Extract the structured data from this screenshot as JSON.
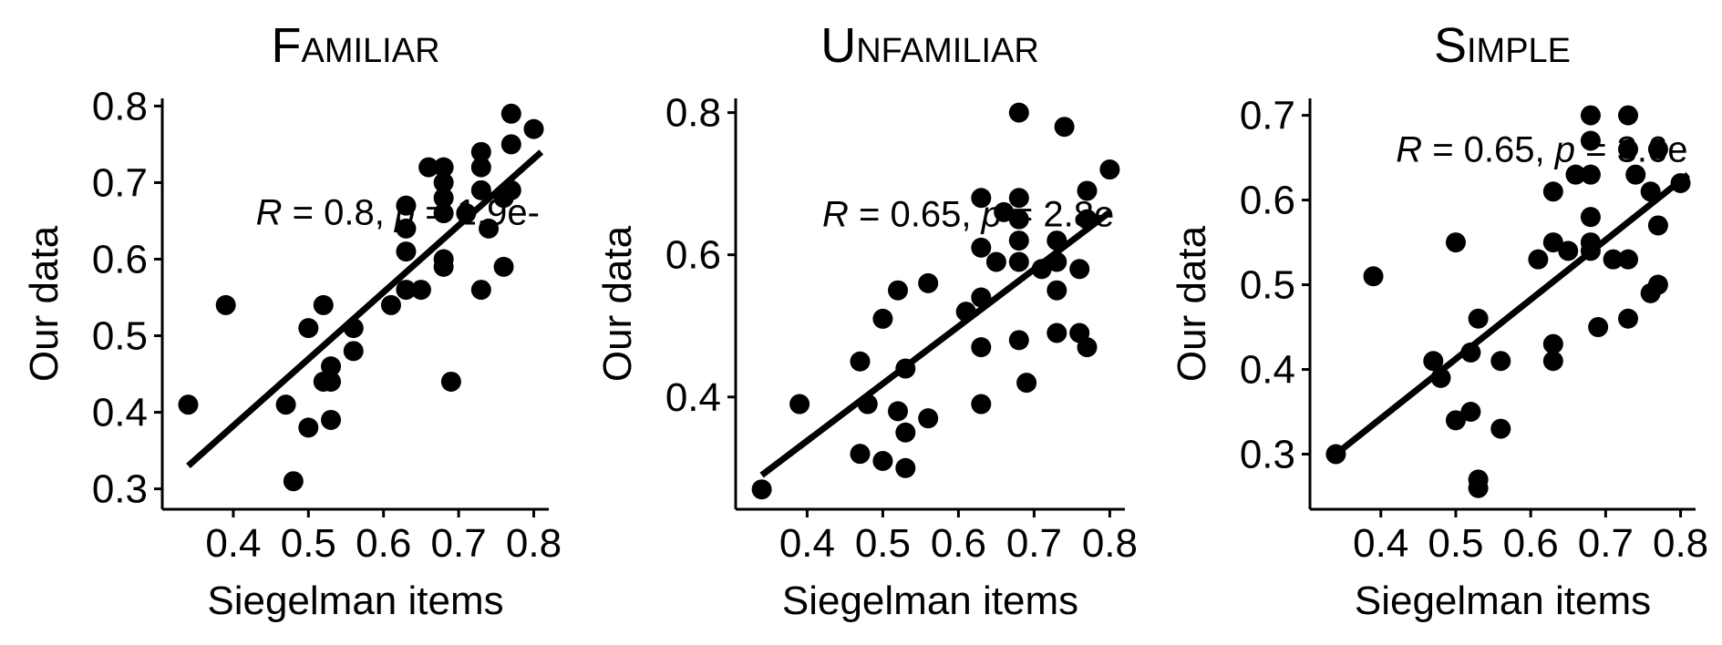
{
  "chart_data": [
    {
      "type": "scatter",
      "title": "Familiar",
      "xlabel": "Siegelman items",
      "ylabel": "Our data",
      "xlim": [
        0.32,
        0.82
      ],
      "ylim": [
        0.29,
        0.81
      ],
      "xticks": [
        "0.4",
        "0.5",
        "0.6",
        "0.7",
        "0.8"
      ],
      "yticks": [
        "0.3",
        "0.4",
        "0.5",
        "0.6",
        "0.7",
        "0.8"
      ],
      "annotation": {
        "r_symbol": "R",
        "r_text": " = 0.8, ",
        "p_symbol": "p",
        "p_text": " = 1.9e-",
        "x": 0.43,
        "y": 0.645
      },
      "fit_line": [
        [
          0.34,
          0.33
        ],
        [
          0.81,
          0.74
        ]
      ],
      "points": [
        [
          0.34,
          0.41
        ],
        [
          0.39,
          0.54
        ],
        [
          0.47,
          0.41
        ],
        [
          0.48,
          0.31
        ],
        [
          0.5,
          0.38
        ],
        [
          0.5,
          0.51
        ],
        [
          0.52,
          0.44
        ],
        [
          0.52,
          0.54
        ],
        [
          0.53,
          0.46
        ],
        [
          0.53,
          0.44
        ],
        [
          0.53,
          0.39
        ],
        [
          0.56,
          0.51
        ],
        [
          0.56,
          0.48
        ],
        [
          0.61,
          0.54
        ],
        [
          0.63,
          0.56
        ],
        [
          0.63,
          0.61
        ],
        [
          0.63,
          0.64
        ],
        [
          0.63,
          0.67
        ],
        [
          0.65,
          0.56
        ],
        [
          0.66,
          0.72
        ],
        [
          0.68,
          0.72
        ],
        [
          0.68,
          0.7
        ],
        [
          0.68,
          0.68
        ],
        [
          0.68,
          0.66
        ],
        [
          0.68,
          0.6
        ],
        [
          0.68,
          0.59
        ],
        [
          0.69,
          0.44
        ],
        [
          0.71,
          0.66
        ],
        [
          0.73,
          0.74
        ],
        [
          0.73,
          0.72
        ],
        [
          0.73,
          0.69
        ],
        [
          0.73,
          0.56
        ],
        [
          0.74,
          0.64
        ],
        [
          0.76,
          0.59
        ],
        [
          0.76,
          0.68
        ],
        [
          0.77,
          0.79
        ],
        [
          0.77,
          0.75
        ],
        [
          0.77,
          0.69
        ],
        [
          0.8,
          0.77
        ]
      ]
    },
    {
      "type": "scatter",
      "title": "Unfamiliar",
      "xlabel": "Siegelman items",
      "ylabel": "Our data",
      "xlim": [
        0.32,
        0.82
      ],
      "ylim": [
        0.26,
        0.82
      ],
      "xticks": [
        "0.4",
        "0.5",
        "0.6",
        "0.7",
        "0.8"
      ],
      "yticks": [
        "0.4",
        "0.6",
        "0.8"
      ],
      "annotation": {
        "r_symbol": "R",
        "r_text": " = 0.65, ",
        "p_symbol": "p",
        "p_text": " = 2.8e",
        "x": 0.42,
        "y": 0.64
      },
      "fit_line": [
        [
          0.34,
          0.29
        ],
        [
          0.8,
          0.66
        ]
      ],
      "points": [
        [
          0.34,
          0.27
        ],
        [
          0.39,
          0.39
        ],
        [
          0.47,
          0.45
        ],
        [
          0.47,
          0.32
        ],
        [
          0.48,
          0.39
        ],
        [
          0.5,
          0.51
        ],
        [
          0.5,
          0.31
        ],
        [
          0.52,
          0.55
        ],
        [
          0.52,
          0.38
        ],
        [
          0.53,
          0.44
        ],
        [
          0.53,
          0.35
        ],
        [
          0.53,
          0.3
        ],
        [
          0.56,
          0.56
        ],
        [
          0.56,
          0.37
        ],
        [
          0.61,
          0.52
        ],
        [
          0.63,
          0.68
        ],
        [
          0.63,
          0.61
        ],
        [
          0.63,
          0.54
        ],
        [
          0.63,
          0.47
        ],
        [
          0.63,
          0.39
        ],
        [
          0.65,
          0.59
        ],
        [
          0.66,
          0.66
        ],
        [
          0.68,
          0.8
        ],
        [
          0.68,
          0.68
        ],
        [
          0.68,
          0.65
        ],
        [
          0.68,
          0.62
        ],
        [
          0.68,
          0.59
        ],
        [
          0.68,
          0.48
        ],
        [
          0.69,
          0.42
        ],
        [
          0.71,
          0.58
        ],
        [
          0.73,
          0.62
        ],
        [
          0.73,
          0.59
        ],
        [
          0.73,
          0.55
        ],
        [
          0.73,
          0.49
        ],
        [
          0.74,
          0.78
        ],
        [
          0.76,
          0.58
        ],
        [
          0.76,
          0.49
        ],
        [
          0.77,
          0.69
        ],
        [
          0.77,
          0.47
        ],
        [
          0.77,
          0.65
        ],
        [
          0.8,
          0.72
        ]
      ]
    },
    {
      "type": "scatter",
      "title": "Simple",
      "xlabel": "Siegelman items",
      "ylabel": "Our data",
      "xlim": [
        0.32,
        0.82
      ],
      "ylim": [
        0.25,
        0.72
      ],
      "xticks": [
        "0.4",
        "0.5",
        "0.6",
        "0.7",
        "0.8"
      ],
      "yticks": [
        "0.3",
        "0.4",
        "0.5",
        "0.6",
        "0.7"
      ],
      "annotation": {
        "r_symbol": "R",
        "r_text": " = 0.65, ",
        "p_symbol": "p",
        "p_text": " = 3.6e",
        "x": 0.42,
        "y": 0.645
      },
      "fit_line": [
        [
          0.34,
          0.3
        ],
        [
          0.81,
          0.63
        ]
      ],
      "points": [
        [
          0.34,
          0.3
        ],
        [
          0.39,
          0.51
        ],
        [
          0.47,
          0.41
        ],
        [
          0.48,
          0.39
        ],
        [
          0.5,
          0.55
        ],
        [
          0.5,
          0.34
        ],
        [
          0.52,
          0.42
        ],
        [
          0.52,
          0.35
        ],
        [
          0.53,
          0.46
        ],
        [
          0.53,
          0.27
        ],
        [
          0.53,
          0.26
        ],
        [
          0.56,
          0.41
        ],
        [
          0.56,
          0.33
        ],
        [
          0.61,
          0.53
        ],
        [
          0.63,
          0.61
        ],
        [
          0.63,
          0.55
        ],
        [
          0.63,
          0.43
        ],
        [
          0.63,
          0.41
        ],
        [
          0.65,
          0.54
        ],
        [
          0.66,
          0.63
        ],
        [
          0.68,
          0.7
        ],
        [
          0.68,
          0.67
        ],
        [
          0.68,
          0.63
        ],
        [
          0.68,
          0.58
        ],
        [
          0.68,
          0.55
        ],
        [
          0.68,
          0.54
        ],
        [
          0.69,
          0.45
        ],
        [
          0.71,
          0.53
        ],
        [
          0.73,
          0.7
        ],
        [
          0.73,
          0.66
        ],
        [
          0.73,
          0.53
        ],
        [
          0.73,
          0.46
        ],
        [
          0.74,
          0.63
        ],
        [
          0.76,
          0.61
        ],
        [
          0.76,
          0.49
        ],
        [
          0.77,
          0.66
        ],
        [
          0.77,
          0.57
        ],
        [
          0.77,
          0.5
        ],
        [
          0.8,
          0.62
        ]
      ]
    }
  ]
}
